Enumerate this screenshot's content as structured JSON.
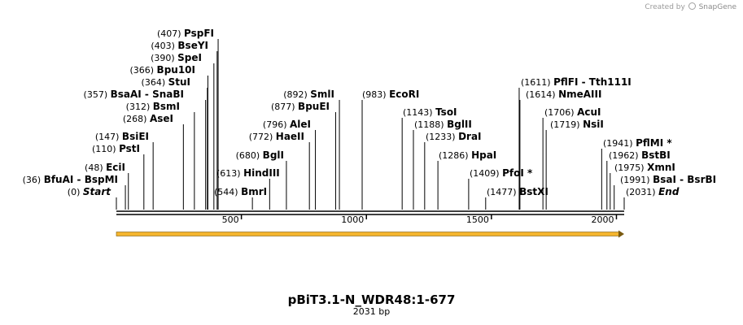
{
  "credit": {
    "prefix": "Created by",
    "brand": "SnapGene"
  },
  "title": "pBiT3.1-N_WDR48:1-677",
  "length_label": "2031 bp",
  "sequence_length": 2031,
  "axis": {
    "ticks": [
      500,
      1000,
      1500,
      2000
    ]
  },
  "features": [
    {
      "name": "",
      "start": 0,
      "end": 2031,
      "direction": "forward",
      "color": "#f5b52e"
    }
  ],
  "sites": [
    {
      "names": [
        "PspFI"
      ],
      "pos": "(407)",
      "bp": 407
    },
    {
      "names": [
        "BseYI"
      ],
      "pos": "(403)",
      "bp": 403
    },
    {
      "names": [
        "SpeI"
      ],
      "pos": "(390)",
      "bp": 390
    },
    {
      "names": [
        "Bpu10I"
      ],
      "pos": "(366)",
      "bp": 366
    },
    {
      "names": [
        "StuI"
      ],
      "pos": "(364)",
      "bp": 364
    },
    {
      "names": [
        "BsaAI",
        "SnaBI"
      ],
      "pos": "(357)",
      "bp": 357
    },
    {
      "names": [
        "BsmI"
      ],
      "pos": "(312)",
      "bp": 312
    },
    {
      "names": [
        "AseI"
      ],
      "pos": "(268)",
      "bp": 268
    },
    {
      "names": [
        "BsiEI"
      ],
      "pos": "(147)",
      "bp": 147
    },
    {
      "names": [
        "PstI"
      ],
      "pos": "(110)",
      "bp": 110
    },
    {
      "names": [
        "EciI"
      ],
      "pos": "(48)",
      "bp": 48
    },
    {
      "names": [
        "BfuAI",
        "BspMI"
      ],
      "pos": "(36)",
      "bp": 36
    },
    {
      "names": [
        "Start"
      ],
      "pos": "(0)",
      "bp": 0,
      "italic": true
    },
    {
      "names": [
        "HindIII"
      ],
      "pos": "(613)",
      "bp": 613
    },
    {
      "names": [
        "BmrI"
      ],
      "pos": "(544)",
      "bp": 544
    },
    {
      "names": [
        "BglI"
      ],
      "pos": "(680)",
      "bp": 680
    },
    {
      "names": [
        "HaeII"
      ],
      "pos": "(772)",
      "bp": 772
    },
    {
      "names": [
        "AleI"
      ],
      "pos": "(796)",
      "bp": 796
    },
    {
      "names": [
        "BpuEI"
      ],
      "pos": "(877)",
      "bp": 877
    },
    {
      "names": [
        "SmlI"
      ],
      "pos": "(892)",
      "bp": 892
    },
    {
      "names": [
        "EcoRI"
      ],
      "pos": "(983)",
      "bp": 983
    },
    {
      "names": [
        "TsoI"
      ],
      "pos": "(1143)",
      "bp": 1143
    },
    {
      "names": [
        "BglII"
      ],
      "pos": "(1188)",
      "bp": 1188
    },
    {
      "names": [
        "DraI"
      ],
      "pos": "(1233)",
      "bp": 1233
    },
    {
      "names": [
        "HpaI"
      ],
      "pos": "(1286)",
      "bp": 1286
    },
    {
      "names": [
        "PfoI *"
      ],
      "pos": "(1409)",
      "bp": 1409
    },
    {
      "names": [
        "BstXI"
      ],
      "pos": "(1477)",
      "bp": 1477
    },
    {
      "names": [
        "PflFI",
        "Tth111I"
      ],
      "pos": "(1611)",
      "bp": 1611
    },
    {
      "names": [
        "NmeAIII"
      ],
      "pos": "(1614)",
      "bp": 1614
    },
    {
      "names": [
        "AcuI"
      ],
      "pos": "(1706)",
      "bp": 1706
    },
    {
      "names": [
        "NsiI"
      ],
      "pos": "(1719)",
      "bp": 1719
    },
    {
      "names": [
        "PflMI *"
      ],
      "pos": "(1941)",
      "bp": 1941
    },
    {
      "names": [
        "BstBI"
      ],
      "pos": "(1962)",
      "bp": 1962
    },
    {
      "names": [
        "XmnI"
      ],
      "pos": "(1975)",
      "bp": 1975
    },
    {
      "names": [
        "BsaI",
        "BsrBI"
      ],
      "pos": "(1991)",
      "bp": 1991
    },
    {
      "names": [
        "End"
      ],
      "pos": "(2031)",
      "bp": 2031,
      "italic": true
    }
  ]
}
